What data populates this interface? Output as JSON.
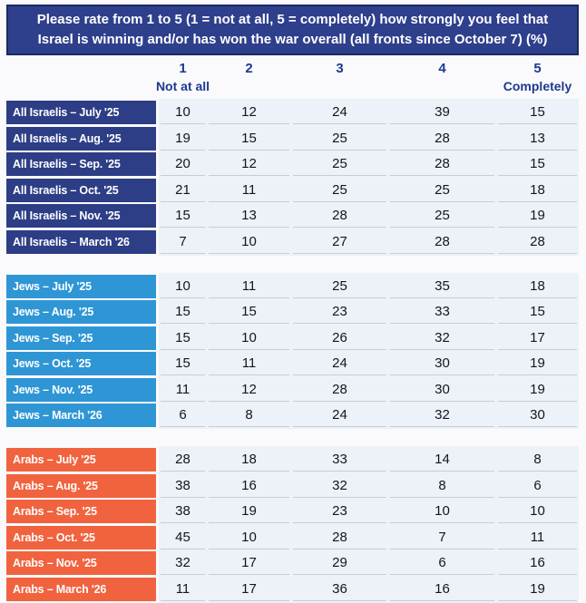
{
  "title": {
    "line1": "Please rate from 1 to 5 (1 = not at all, 5 = completely) how strongly you feel that",
    "line2": "Israel is winning and/or has won the war overall (all fronts since October 7) (%)"
  },
  "scale": {
    "columns": [
      {
        "number": "1",
        "label": "Not at all"
      },
      {
        "number": "2",
        "label": ""
      },
      {
        "number": "3",
        "label": ""
      },
      {
        "number": "4",
        "label": ""
      },
      {
        "number": "5",
        "label": "Completely"
      }
    ]
  },
  "colors": {
    "title_fill": "#2e3f8c",
    "title_border": "#1b2860",
    "all_israelis_row": "#2d3e86",
    "jews_row": "#2f96d5",
    "arabs_row": "#f0633e",
    "data_background": "#edf1f8",
    "separator_line": "#c9ccd5",
    "header_text": "#1c3a8d",
    "value_text": "#15151d",
    "page_background": "#fafafc"
  },
  "chart_data": {
    "type": "table",
    "title": "Please rate from 1 to 5 (1 = not at all, 5 = completely) how strongly you feel that Israel is winning and/or has won the war overall (all fronts since October 7) (%)",
    "unit": "%",
    "columns": [
      "1 Not at all",
      "2",
      "3",
      "4",
      "5 Completely"
    ],
    "groups": [
      {
        "name": "All Israelis",
        "row_color": "#2d3e86",
        "rows": [
          {
            "label": "All Israelis – July '25",
            "values": [
              10,
              12,
              24,
              39,
              15
            ]
          },
          {
            "label": "All Israelis – Aug. '25",
            "values": [
              19,
              15,
              25,
              28,
              13
            ]
          },
          {
            "label": "All Israelis – Sep. '25",
            "values": [
              20,
              12,
              25,
              28,
              15
            ]
          },
          {
            "label": "All Israelis – Oct. '25",
            "values": [
              21,
              11,
              25,
              25,
              18
            ]
          },
          {
            "label": "All Israelis – Nov. '25",
            "values": [
              15,
              13,
              28,
              25,
              19
            ]
          },
          {
            "label": "All Israelis – March '26",
            "values": [
              7,
              10,
              27,
              28,
              28
            ]
          }
        ]
      },
      {
        "name": "Jews",
        "row_color": "#2f96d5",
        "rows": [
          {
            "label": "Jews – July '25",
            "values": [
              10,
              11,
              25,
              35,
              18
            ]
          },
          {
            "label": "Jews – Aug. '25",
            "values": [
              15,
              15,
              23,
              33,
              15
            ]
          },
          {
            "label": "Jews – Sep. '25",
            "values": [
              15,
              10,
              26,
              32,
              17
            ]
          },
          {
            "label": "Jews – Oct. '25",
            "values": [
              15,
              11,
              24,
              30,
              19
            ]
          },
          {
            "label": "Jews – Nov. '25",
            "values": [
              11,
              12,
              28,
              30,
              19
            ]
          },
          {
            "label": "Jews – March '26",
            "values": [
              6,
              8,
              24,
              32,
              30
            ]
          }
        ]
      },
      {
        "name": "Arabs",
        "row_color": "#f0633e",
        "rows": [
          {
            "label": "Arabs – July '25",
            "values": [
              28,
              18,
              33,
              14,
              8
            ]
          },
          {
            "label": "Arabs – Aug. '25",
            "values": [
              38,
              16,
              32,
              8,
              6
            ]
          },
          {
            "label": "Arabs – Sep. '25",
            "values": [
              38,
              19,
              23,
              10,
              10
            ]
          },
          {
            "label": "Arabs – Oct. '25",
            "values": [
              45,
              10,
              28,
              7,
              11
            ]
          },
          {
            "label": "Arabs – Nov. '25",
            "values": [
              32,
              17,
              29,
              6,
              16
            ]
          },
          {
            "label": "Arabs – March '26",
            "values": [
              11,
              17,
              36,
              16,
              19
            ]
          }
        ]
      }
    ]
  }
}
